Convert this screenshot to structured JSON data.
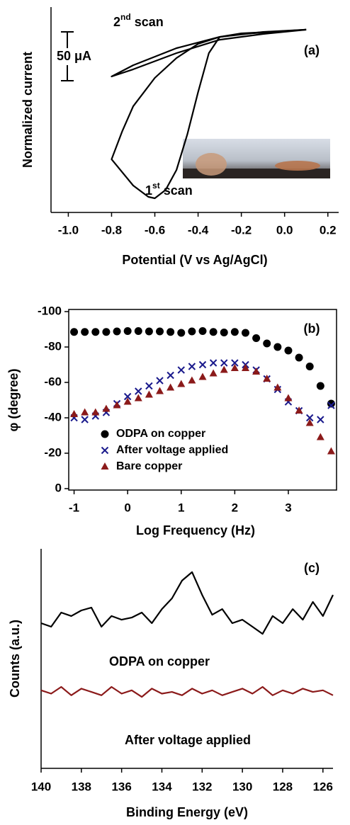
{
  "chart_data": [
    {
      "type": "line",
      "x_label": "Potential (V vs Ag/AgCl)",
      "y_label": "Normalized current",
      "xlim": [
        -1.08,
        0.25
      ],
      "xticks": [
        {
          "value": -1.0,
          "label": "-1.0"
        },
        -0.8,
        -0.6,
        -0.4,
        -0.2,
        {
          "value": 0.0,
          "label": "0.0"
        },
        0.2
      ],
      "ylim": [
        0,
        100
      ],
      "annotations": [
        "50 μA",
        "(a)"
      ],
      "series": [
        {
          "name_parts": [
            "1",
            "st",
            " scan"
          ],
          "color": "#000000",
          "x": [
            0.1,
            0,
            -0.2,
            -0.3,
            -0.35,
            -0.4,
            -0.45,
            -0.5,
            -0.55,
            -0.6,
            -0.63,
            -0.7,
            -0.8,
            -0.75,
            -0.7,
            -0.6,
            -0.5,
            -0.4,
            -0.3,
            -0.2,
            0,
            0.1
          ],
          "values": [
            89,
            88.3,
            87.2,
            85.5,
            77.6,
            58.6,
            37.9,
            20.7,
            11,
            6.9,
            7.6,
            13.1,
            25.9,
            39.7,
            51.7,
            65.5,
            75.2,
            82.1,
            85.5,
            86.9,
            88.3,
            89
          ]
        },
        {
          "name_parts": [
            "2",
            "nd",
            " scan"
          ],
          "color": "#000000",
          "x": [
            0.1,
            -0.1,
            -0.3,
            -0.5,
            -0.7,
            -0.8,
            -0.7,
            -0.5,
            -0.3,
            -0.1,
            0.1
          ],
          "values": [
            89,
            87.9,
            85.5,
            80,
            71.7,
            66.2,
            69.7,
            77.6,
            84.1,
            86.9,
            89
          ]
        }
      ]
    },
    {
      "type": "scatter",
      "x_label": "Log Frequency (Hz)",
      "y_label": "φ (degree)",
      "xlim": [
        -1.1,
        3.9
      ],
      "xticks": [
        -1,
        0,
        1,
        2,
        3
      ],
      "ylim": [
        0,
        -100
      ],
      "yticks": [
        0,
        -20,
        -40,
        -60,
        -80,
        -100
      ],
      "annotations": [
        "(b)"
      ],
      "legend": "lower left",
      "x": [
        -1.0,
        -0.8,
        -0.6,
        -0.4,
        -0.2,
        0.0,
        0.2,
        0.4,
        0.6,
        0.8,
        1.0,
        1.2,
        1.4,
        1.6,
        1.8,
        2.0,
        2.2,
        2.4,
        2.6,
        2.8,
        3.0,
        3.2,
        3.4,
        3.6,
        3.8
      ],
      "series": [
        {
          "name": "ODPA on copper",
          "color": "#000000",
          "marker": "circle",
          "values": [
            -88.5,
            -88.5,
            -88.5,
            -88.5,
            -88.8,
            -89,
            -89,
            -88.8,
            -88.8,
            -88.5,
            -88,
            -88.8,
            -89,
            -88.5,
            -88.2,
            -88.5,
            -88,
            -85,
            -82,
            -80,
            -78,
            -74,
            -69,
            -58,
            -48
          ]
        },
        {
          "name": "After voltage applied",
          "color": "#1a1a8c",
          "marker": "x",
          "values": [
            -40,
            -39,
            -41,
            -43,
            -48,
            -52,
            -55,
            -58,
            -61,
            -64,
            -67,
            -69,
            -70,
            -71,
            -71,
            -71,
            -70,
            -67,
            -62,
            -56,
            -49,
            -44,
            -40,
            -39,
            -47
          ]
        },
        {
          "name": "Bare copper",
          "color": "#8b1a1a",
          "marker": "triangle",
          "values": [
            -42,
            -43,
            -43,
            -45,
            -47,
            -49,
            -51,
            -53,
            -55,
            -57,
            -59,
            -61,
            -63,
            -65,
            -67,
            -68,
            -68,
            -66,
            -62,
            -57,
            -51,
            -44,
            -37,
            -29,
            -21
          ]
        }
      ]
    },
    {
      "type": "line",
      "x_label": "Binding Energy (eV)",
      "y_label": "Counts (a.u.)",
      "xlim": [
        140,
        125.5
      ],
      "xticks": [
        140,
        138,
        136,
        134,
        132,
        130,
        128,
        126
      ],
      "ylim": [
        0,
        100
      ],
      "annotations": [
        "(c)"
      ],
      "x": [
        140,
        139.5,
        139,
        138.5,
        138,
        137.5,
        137,
        136.5,
        136,
        135.5,
        135,
        134.5,
        134,
        133.5,
        133,
        132.5,
        132,
        131.5,
        131,
        130.5,
        130,
        129.5,
        129,
        128.5,
        128,
        127.5,
        127,
        126.5,
        126,
        125.5
      ],
      "series": [
        {
          "name": "ODPA on copper",
          "color": "#000000",
          "values": [
            55.3,
            53.2,
            61.7,
            59.6,
            63.0,
            64.7,
            53.2,
            59.6,
            57.4,
            58.7,
            61.7,
            55.3,
            63.8,
            70.2,
            80.9,
            86.0,
            72.3,
            60.4,
            63.8,
            55.3,
            57.4,
            53.2,
            48.9,
            59.6,
            55.3,
            63.8,
            57.4,
            68.1,
            59.6,
            72.3
          ]
        },
        {
          "name": "After voltage applied",
          "color": "#8b1a1a",
          "values": [
            15,
            13,
            17,
            12,
            16,
            14,
            12,
            17,
            13,
            15,
            11,
            16,
            13,
            14,
            12,
            16,
            13,
            15,
            12,
            14,
            16,
            13,
            17,
            12,
            15,
            13,
            16,
            14,
            15,
            12
          ]
        }
      ]
    }
  ]
}
